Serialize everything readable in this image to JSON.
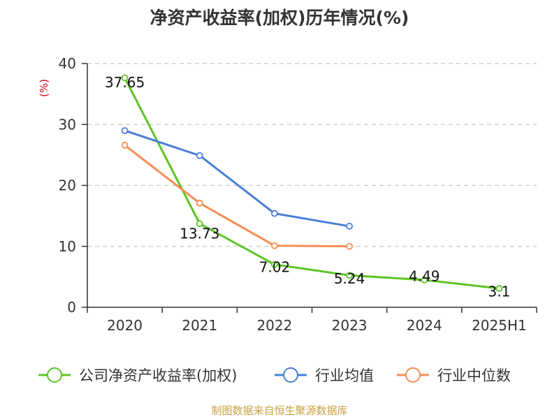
{
  "chart_data": {
    "type": "line",
    "title": "净资产收益率(加权)历年情况(%)",
    "ylabel": "(%)",
    "xlabel": "",
    "categories": [
      "2020",
      "2021",
      "2022",
      "2023",
      "2024",
      "2025H1"
    ],
    "ylim": [
      0,
      40
    ],
    "yticks": [
      0,
      10,
      20,
      30,
      40
    ],
    "grid": true,
    "legend_position": "bottom",
    "series": [
      {
        "name": "公司净资产收益率(加权)",
        "color": "#5cc424",
        "values": [
          37.65,
          13.73,
          7.02,
          5.24,
          4.49,
          3.1
        ],
        "labels": [
          "37.65",
          "13.73",
          "7.02",
          "5.24",
          "4.49",
          "3.1"
        ]
      },
      {
        "name": "行业均值",
        "color": "#4a7fd8",
        "values": [
          29.0,
          24.9,
          15.4,
          13.3,
          null,
          null
        ]
      },
      {
        "name": "行业中位数",
        "color": "#f58d55",
        "values": [
          26.6,
          17.1,
          10.1,
          10.0,
          null,
          null
        ]
      }
    ]
  },
  "source": "制图数据来自恒生聚源数据库"
}
